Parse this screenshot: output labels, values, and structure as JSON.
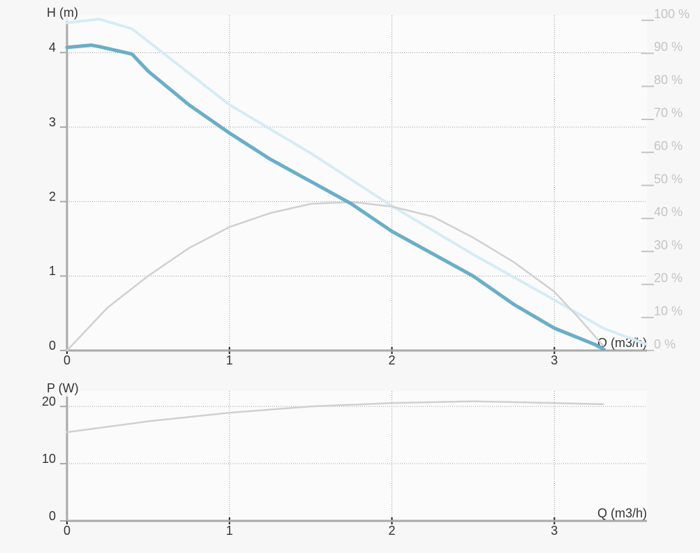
{
  "chart_data": [
    {
      "type": "line",
      "y_label": "H (m)",
      "x_label": "Q (m3/h)",
      "xlim": [
        0,
        3.57
      ],
      "xticks": [
        0,
        1,
        2,
        3
      ],
      "ylim": [
        0,
        4.5
      ],
      "yticks": [
        0,
        1,
        2,
        3,
        4
      ],
      "y2lim": [
        0,
        101.5
      ],
      "y2ticks": [
        {
          "value": 0,
          "label": "0 %"
        },
        {
          "value": 10,
          "label": "10 %"
        },
        {
          "value": 20,
          "label": "20 %"
        },
        {
          "value": 30,
          "label": "30 %"
        },
        {
          "value": 40,
          "label": "40 %"
        },
        {
          "value": 50,
          "label": "50 %"
        },
        {
          "value": 60,
          "label": "60 %"
        },
        {
          "value": 70,
          "label": "70 %"
        },
        {
          "value": 80,
          "label": "80 %"
        },
        {
          "value": 90,
          "label": "90 %"
        },
        {
          "value": 100,
          "label": "100 %"
        }
      ],
      "grid": true,
      "series": [
        {
          "color": "#d6ebf5",
          "line_style": "dotted",
          "x": [
            0,
            0.2,
            0.4,
            0.5,
            1.0,
            1.5,
            2.0,
            2.5,
            3.0,
            3.3,
            3.57
          ],
          "values": [
            4.4,
            4.45,
            4.32,
            4.15,
            3.3,
            2.65,
            1.94,
            1.29,
            0.68,
            0.3,
            0.08
          ]
        },
        {
          "color": "#d0d0d0",
          "line_style": "solid",
          "axis": "y2",
          "x": [
            0,
            0.25,
            0.5,
            0.75,
            1.0,
            1.25,
            1.5,
            1.75,
            2.0,
            2.25,
            2.5,
            2.75,
            3.0,
            3.15,
            3.3
          ],
          "values": [
            0,
            13,
            22.6,
            31,
            37.4,
            41.6,
            44.4,
            45,
            43.6,
            40.6,
            34.2,
            26.8,
            17.8,
            9.9,
            1.5
          ]
        },
        {
          "color": "#6aaec8",
          "line_style": "thick",
          "x": [
            0,
            0.15,
            0.2,
            0.4,
            0.5,
            0.75,
            1.0,
            1.25,
            1.5,
            1.75,
            2.0,
            2.25,
            2.5,
            2.75,
            3.0,
            3.25,
            3.3
          ],
          "values": [
            4.07,
            4.1,
            4.08,
            3.98,
            3.75,
            3.3,
            2.92,
            2.57,
            2.27,
            1.97,
            1.6,
            1.3,
            1.0,
            0.62,
            0.3,
            0.08,
            0.02
          ]
        }
      ]
    },
    {
      "type": "line",
      "y_label": "P (W)",
      "x_label": "Q (m3/h)",
      "xlim": [
        0,
        3.57
      ],
      "xticks": [
        0,
        1,
        2,
        3
      ],
      "ylim": [
        0,
        22.7
      ],
      "yticks": [
        0,
        10,
        20
      ],
      "grid": true,
      "series": [
        {
          "color": "#d0d0d0",
          "line_style": "solid",
          "x": [
            0,
            0.5,
            1.0,
            1.5,
            2.0,
            2.5,
            3.0,
            3.3
          ],
          "values": [
            15.5,
            17.4,
            18.9,
            20,
            20.6,
            20.9,
            20.6,
            20.4
          ]
        }
      ]
    }
  ]
}
